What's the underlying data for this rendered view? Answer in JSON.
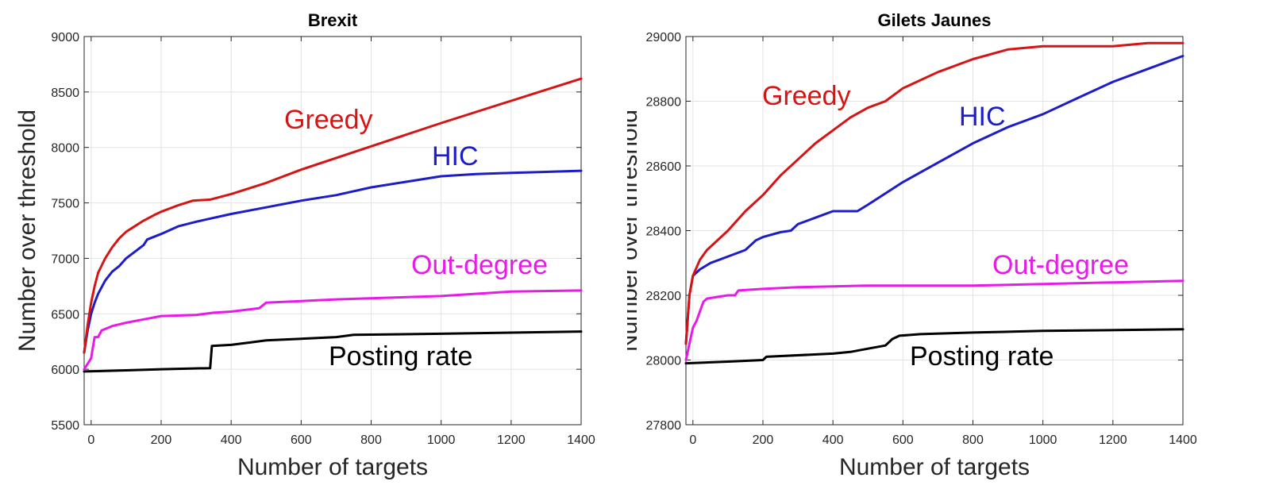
{
  "chart_data": [
    {
      "type": "line",
      "title": "Brexit",
      "xlabel": "Number of targets",
      "ylabel": "Number over threshold",
      "xlim": [
        -20,
        1400
      ],
      "ylim": [
        5500,
        9000
      ],
      "xticks": [
        0,
        200,
        400,
        600,
        800,
        1000,
        1200,
        1400
      ],
      "yticks": [
        5500,
        6000,
        6500,
        7000,
        7500,
        8000,
        8500,
        9000
      ],
      "grid": true,
      "series": [
        {
          "name": "Greedy",
          "color": "#d71414",
          "label": "Greedy",
          "x": [
            -20,
            -10,
            0,
            10,
            20,
            40,
            60,
            80,
            100,
            120,
            150,
            180,
            200,
            250,
            290,
            340,
            400,
            500,
            600,
            800,
            1000,
            1200,
            1400
          ],
          "y": [
            6150,
            6400,
            6600,
            6750,
            6870,
            7000,
            7100,
            7180,
            7240,
            7280,
            7340,
            7390,
            7420,
            7480,
            7520,
            7530,
            7580,
            7680,
            7800,
            8010,
            8220,
            8420,
            8620
          ]
        },
        {
          "name": "HIC",
          "color": "#1c1cc8",
          "label": "HIC",
          "x": [
            -20,
            -10,
            0,
            10,
            20,
            40,
            60,
            80,
            100,
            150,
            160,
            200,
            250,
            300,
            400,
            500,
            600,
            700,
            800,
            900,
            1000,
            1100,
            1200,
            1300,
            1400
          ],
          "y": [
            6150,
            6350,
            6500,
            6600,
            6680,
            6800,
            6880,
            6930,
            7000,
            7120,
            7170,
            7220,
            7290,
            7330,
            7400,
            7460,
            7520,
            7570,
            7640,
            7690,
            7740,
            7760,
            7770,
            7780,
            7790
          ]
        },
        {
          "name": "Out-degree",
          "color": "#e81ae8",
          "label": "Out-degree",
          "x": [
            -20,
            -10,
            0,
            10,
            20,
            30,
            60,
            100,
            150,
            200,
            300,
            350,
            400,
            480,
            500,
            700,
            1000,
            1200,
            1400
          ],
          "y": [
            6000,
            6050,
            6100,
            6290,
            6290,
            6350,
            6390,
            6420,
            6450,
            6480,
            6490,
            6510,
            6520,
            6550,
            6600,
            6630,
            6660,
            6700,
            6710
          ]
        },
        {
          "name": "Posting rate",
          "color": "#000000",
          "label": "Posting rate",
          "x": [
            -20,
            100,
            200,
            340,
            345,
            400,
            450,
            500,
            700,
            750,
            1000,
            1200,
            1400
          ],
          "y": [
            5980,
            5990,
            6000,
            6010,
            6210,
            6220,
            6240,
            6260,
            6290,
            6310,
            6320,
            6330,
            6340
          ]
        }
      ]
    },
    {
      "type": "line",
      "title": "Gilets Jaunes",
      "xlabel": "Number of targets",
      "ylabel": "Number over threshold",
      "xlim": [
        -20,
        1400
      ],
      "ylim": [
        27800,
        29000
      ],
      "xticks": [
        0,
        200,
        400,
        600,
        800,
        1000,
        1200,
        1400
      ],
      "yticks": [
        27800,
        28000,
        28200,
        28400,
        28600,
        28800,
        29000
      ],
      "grid": true,
      "series": [
        {
          "name": "Greedy",
          "color": "#d71414",
          "label": "Greedy",
          "x": [
            -20,
            -10,
            0,
            20,
            40,
            50,
            100,
            150,
            200,
            250,
            300,
            350,
            400,
            450,
            500,
            550,
            600,
            700,
            800,
            900,
            1000,
            1200,
            1300,
            1400
          ],
          "y": [
            28050,
            28200,
            28260,
            28310,
            28340,
            28350,
            28400,
            28460,
            28510,
            28570,
            28620,
            28670,
            28710,
            28750,
            28780,
            28800,
            28840,
            28890,
            28930,
            28960,
            28970,
            28970,
            28980,
            28980
          ]
        },
        {
          "name": "HIC",
          "color": "#1c1cc8",
          "label": "HIC",
          "x": [
            -20,
            -10,
            0,
            20,
            50,
            100,
            150,
            180,
            200,
            250,
            280,
            300,
            350,
            400,
            450,
            470,
            500,
            600,
            700,
            800,
            900,
            1000,
            1100,
            1200,
            1300,
            1400
          ],
          "y": [
            28050,
            28200,
            28260,
            28280,
            28300,
            28320,
            28340,
            28370,
            28380,
            28395,
            28400,
            28420,
            28440,
            28460,
            28460,
            28460,
            28480,
            28550,
            28610,
            28670,
            28720,
            28760,
            28810,
            28860,
            28900,
            28940
          ]
        },
        {
          "name": "Out-degree",
          "color": "#e81ae8",
          "label": "Out-degree",
          "x": [
            -20,
            -10,
            0,
            10,
            20,
            30,
            40,
            100,
            120,
            130,
            200,
            300,
            500,
            800,
            1000,
            1200,
            1400
          ],
          "y": [
            28000,
            28050,
            28100,
            28120,
            28150,
            28180,
            28190,
            28200,
            28200,
            28215,
            28220,
            28225,
            28230,
            28230,
            28235,
            28240,
            28245
          ]
        },
        {
          "name": "Posting rate",
          "color": "#000000",
          "label": "Posting rate",
          "x": [
            -20,
            100,
            200,
            210,
            400,
            450,
            500,
            550,
            570,
            590,
            650,
            800,
            1000,
            1400
          ],
          "y": [
            27990,
            27995,
            28000,
            28010,
            28020,
            28025,
            28035,
            28045,
            28065,
            28075,
            28080,
            28085,
            28090,
            28095
          ]
        }
      ]
    }
  ]
}
